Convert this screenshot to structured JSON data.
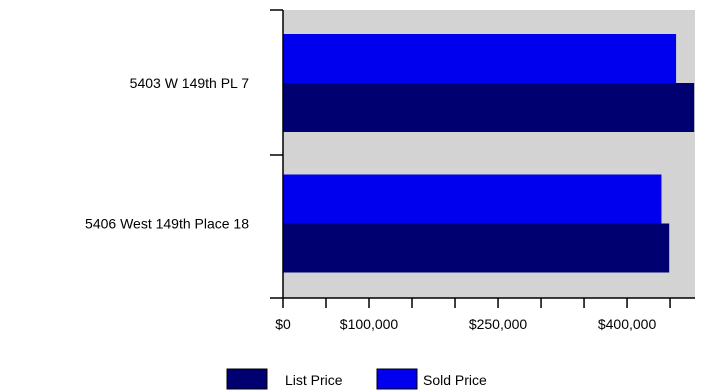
{
  "chart_data": {
    "type": "bar",
    "orientation": "horizontal",
    "categories": [
      "5403 W 149th PL 7",
      "5406 West 149th Place 18"
    ],
    "series": [
      {
        "name": "Sold Price",
        "values": [
          457000,
          440000
        ],
        "color": "#0000ee"
      },
      {
        "name": "List Price",
        "values": [
          478000,
          449000
        ],
        "color": "#000070"
      }
    ],
    "x_ticks": [
      0,
      50000,
      100000,
      150000,
      200000,
      250000,
      300000,
      350000,
      400000,
      450000
    ],
    "x_tick_labels": [
      {
        "value": 0,
        "label": "$0"
      },
      {
        "value": 100000,
        "label": "$100,000"
      },
      {
        "value": 250000,
        "label": "$250,000"
      },
      {
        "value": 400000,
        "label": "$400,000"
      }
    ],
    "xlim": [
      0,
      479000
    ],
    "legend": {
      "placement": "bottom-center",
      "items": [
        {
          "label": "List Price",
          "color": "#000070"
        },
        {
          "label": "Sold Price",
          "color": "#0000ee"
        }
      ]
    },
    "plot_background": "#d3d3d3",
    "grid": false
  }
}
